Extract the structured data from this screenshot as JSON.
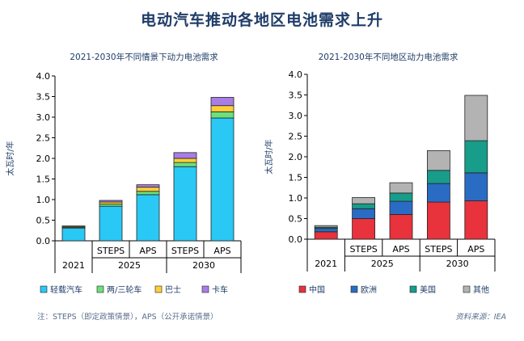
{
  "title": "电动汽车推动各地区电池需求上升",
  "footnote": "注：STEPS（即定政策情景），APS（公开承诺情景）",
  "source": "资料来源：IEA",
  "chart_data": [
    {
      "type": "bar",
      "stacked": true,
      "title": "2021-2030年不同情景下动力电池需求",
      "ylabel": "太瓦时/年",
      "ylim": [
        0,
        4.0
      ],
      "yticks": [
        "0.0",
        "0.5",
        "1.0",
        "1.5",
        "2.0",
        "2.5",
        "3.0",
        "3.5",
        "4.0"
      ],
      "categories": [
        "2021",
        "STEPS",
        "APS",
        "STEPS",
        "APS"
      ],
      "groups": [
        {
          "label": "2021",
          "span": 1
        },
        {
          "label": "2025",
          "span": 2
        },
        {
          "label": "2030",
          "span": 2
        }
      ],
      "series": [
        {
          "name": "轻载汽车",
          "color": "#29c8f5",
          "values": [
            0.31,
            0.84,
            1.12,
            1.8,
            2.98
          ]
        },
        {
          "name": "两/三轮车",
          "color": "#6ee07a",
          "values": [
            0.02,
            0.05,
            0.08,
            0.1,
            0.15
          ]
        },
        {
          "name": "巴士",
          "color": "#ffcf3a",
          "values": [
            0.02,
            0.05,
            0.1,
            0.1,
            0.15
          ]
        },
        {
          "name": "卡车",
          "color": "#a87ee6",
          "values": [
            0.01,
            0.04,
            0.06,
            0.14,
            0.2
          ]
        }
      ],
      "grid": false,
      "legend": "bottom"
    },
    {
      "type": "bar",
      "stacked": true,
      "title": "2021-2030年不同地区动力电池需求",
      "ylabel": "太瓦时/年",
      "ylim": [
        0,
        4.0
      ],
      "yticks": [
        "0.0",
        "0.5",
        "1.0",
        "1.5",
        "2.0",
        "2.5",
        "3.0",
        "3.5",
        "4.0"
      ],
      "categories": [
        "2021",
        "STEPS",
        "APS",
        "STEPS",
        "APS"
      ],
      "groups": [
        {
          "label": "2021",
          "span": 1
        },
        {
          "label": "2025",
          "span": 2
        },
        {
          "label": "2030",
          "span": 2
        }
      ],
      "series": [
        {
          "name": "中国",
          "color": "#e8323c",
          "values": [
            0.18,
            0.5,
            0.6,
            0.9,
            0.93
          ]
        },
        {
          "name": "欧洲",
          "color": "#2a6cc4",
          "values": [
            0.08,
            0.24,
            0.32,
            0.45,
            0.68
          ]
        },
        {
          "name": "美国",
          "color": "#179d8a",
          "values": [
            0.03,
            0.12,
            0.2,
            0.32,
            0.78
          ]
        },
        {
          "name": "其他",
          "color": "#b3b3b3",
          "values": [
            0.04,
            0.15,
            0.25,
            0.48,
            1.1
          ]
        }
      ],
      "grid": false,
      "legend": "bottom"
    }
  ]
}
